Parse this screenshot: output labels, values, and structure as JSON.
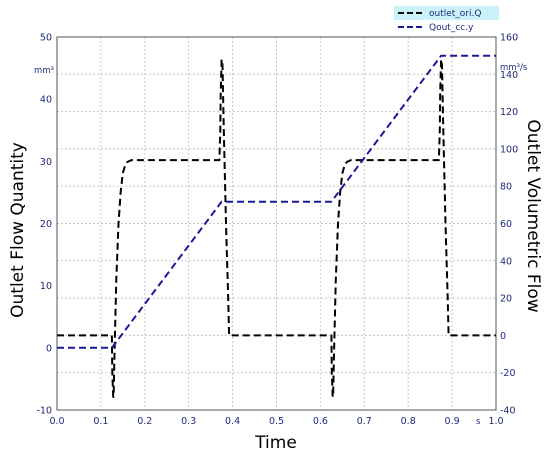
{
  "chart_data": {
    "type": "line",
    "xlabel": "Time",
    "x_unit": "s",
    "xlim": [
      0.0,
      1.0
    ],
    "x_ticks": [
      "0.0",
      "0.1",
      "0.2",
      "0.3",
      "0.4",
      "0.5",
      "0.6",
      "0.7",
      "0.8",
      "0.9",
      "1.0"
    ],
    "ylabel_left": "Outlet Flow Quantity",
    "y_left_unit": "mm³",
    "ylim_left": [
      -10,
      50
    ],
    "y_left_ticks": [
      "-10",
      "0",
      "10",
      "20",
      "30",
      "40",
      "50"
    ],
    "ylabel_right": "Outlet Volumetric Flow",
    "y_right_unit": "mm³/s",
    "ylim_right": [
      -40,
      160
    ],
    "y_right_ticks": [
      "-40",
      "-20",
      "0",
      "20",
      "40",
      "60",
      "80",
      "100",
      "120",
      "140",
      "160"
    ],
    "grid": true,
    "legend_position": "top-right",
    "series": [
      {
        "name": "outlet_ori.Q",
        "axis": "right",
        "color": "#000000",
        "style": "dashed",
        "x": [
          0.0,
          0.125,
          0.126,
          0.128,
          0.129,
          0.131,
          0.135,
          0.14,
          0.145,
          0.15,
          0.155,
          0.16,
          0.17,
          0.18,
          0.2,
          0.3,
          0.37,
          0.372,
          0.373,
          0.375,
          0.377,
          0.38,
          0.385,
          0.39,
          0.392,
          0.4,
          0.5,
          0.625,
          0.626,
          0.628,
          0.629,
          0.631,
          0.635,
          0.64,
          0.645,
          0.65,
          0.655,
          0.66,
          0.67,
          0.68,
          0.7,
          0.8,
          0.87,
          0.872,
          0.873,
          0.875,
          0.877,
          0.88,
          0.885,
          0.89,
          0.892,
          0.9,
          1.0
        ],
        "y": [
          0,
          0,
          -20,
          -33,
          -33,
          -10,
          30,
          60,
          77,
          87,
          91,
          93,
          94,
          94,
          94,
          94,
          94,
          110,
          130,
          148,
          145,
          110,
          60,
          20,
          0,
          0,
          0,
          0,
          -20,
          -33,
          -33,
          -10,
          30,
          60,
          77,
          87,
          91,
          93,
          94,
          94,
          94,
          94,
          94,
          110,
          130,
          148,
          145,
          110,
          60,
          20,
          0,
          0,
          0
        ]
      },
      {
        "name": "Qout_cc.y",
        "axis": "left",
        "color": "#1a1a99",
        "style": "dashed",
        "x": [
          0.0,
          0.125,
          0.375,
          0.625,
          0.875,
          1.0
        ],
        "y": [
          0,
          0,
          23.5,
          23.5,
          47,
          47
        ]
      }
    ]
  }
}
